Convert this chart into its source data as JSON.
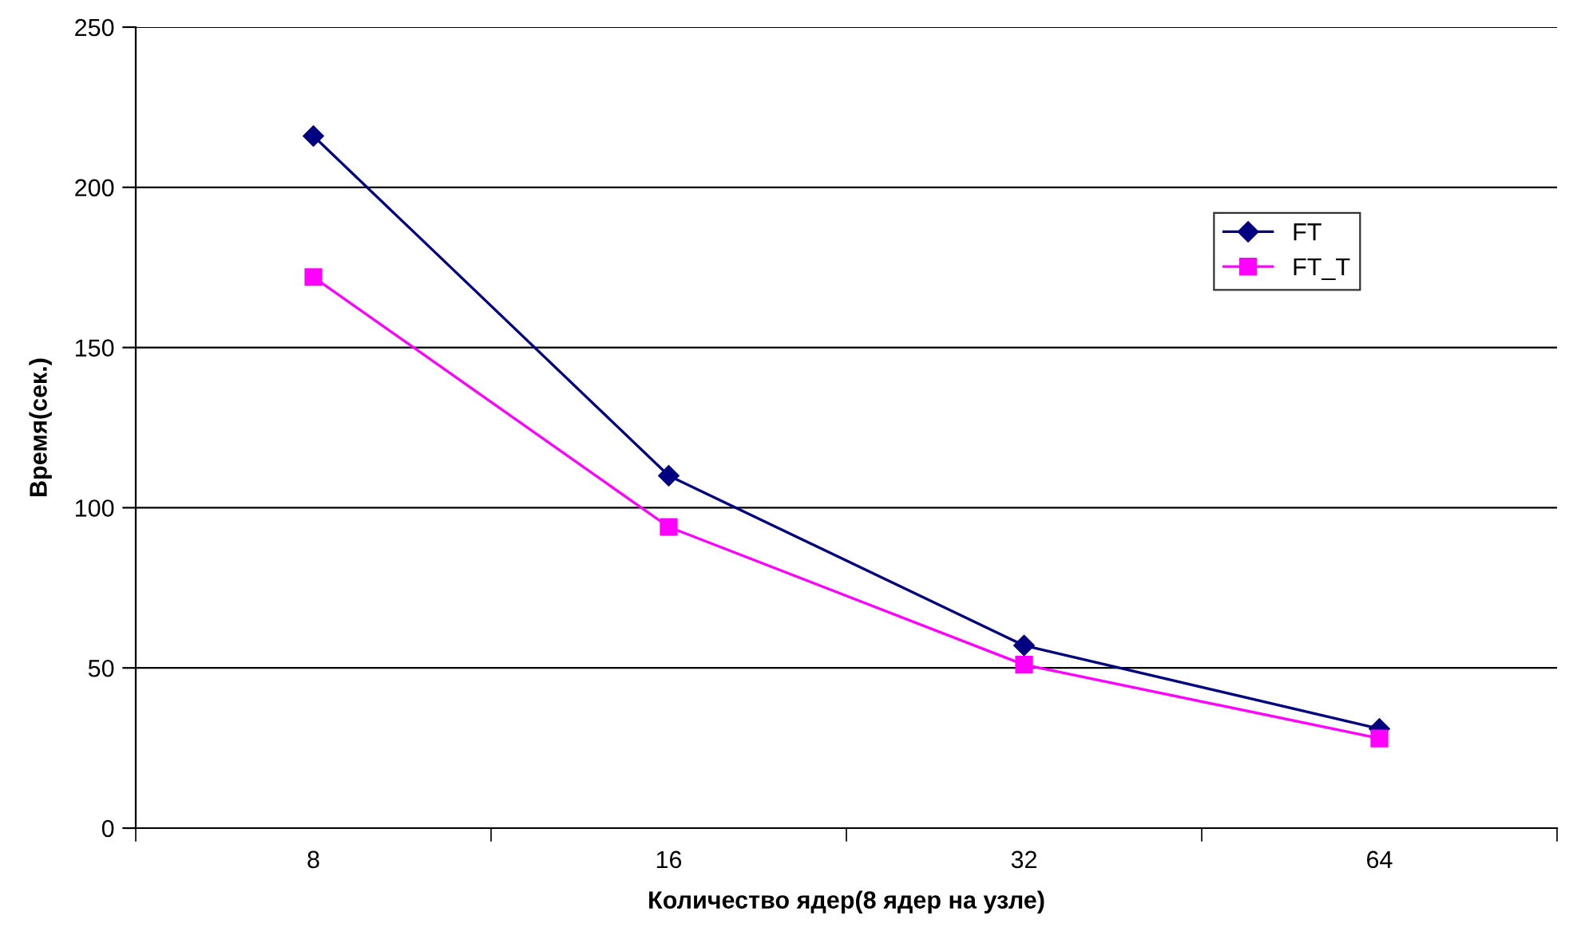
{
  "chart_data": {
    "type": "line",
    "xlabel": "Количество ядер(8 ядер на узле)",
    "ylabel": "Время(сек.)",
    "categories": [
      "8",
      "16",
      "32",
      "64"
    ],
    "series": [
      {
        "name": "FT",
        "color": "#000080",
        "marker": "diamond",
        "values": [
          216,
          110,
          57,
          31
        ]
      },
      {
        "name": "FT_T",
        "color": "#ff00ff",
        "marker": "square",
        "values": [
          172,
          94,
          51,
          28
        ]
      }
    ],
    "ylim": [
      0,
      250
    ],
    "yticks": [
      0,
      50,
      100,
      150,
      200,
      250
    ],
    "grid": "y",
    "legend": "right",
    "line_style": "solid"
  }
}
